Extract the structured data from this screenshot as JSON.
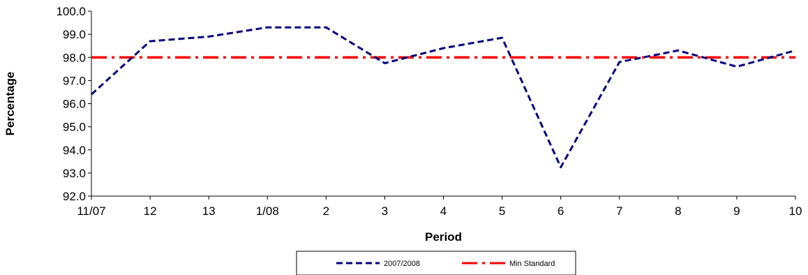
{
  "chart_data": {
    "type": "line",
    "title": "",
    "xlabel": "Period",
    "ylabel": "Percentage",
    "categories": [
      "11/07",
      "12",
      "13",
      "1/08",
      "2",
      "3",
      "4",
      "5",
      "6",
      "7",
      "8",
      "9",
      "10"
    ],
    "ylim": [
      92.0,
      100.0
    ],
    "yticks": [
      "92.0",
      "93.0",
      "94.0",
      "95.0",
      "96.0",
      "97.0",
      "98.0",
      "99.0",
      "100.0"
    ],
    "grid": false,
    "legend_position": "bottom",
    "series": [
      {
        "name": "2007/2008",
        "values": [
          96.4,
          98.7,
          98.9,
          99.3,
          99.3,
          97.75,
          98.4,
          98.85,
          93.25,
          97.8,
          98.3,
          97.6,
          98.3
        ],
        "color": "#000080",
        "style": "dashed"
      },
      {
        "name": "Min Standard",
        "values": [
          98.0,
          98.0,
          98.0,
          98.0,
          98.0,
          98.0,
          98.0,
          98.0,
          98.0,
          98.0,
          98.0,
          98.0,
          98.0
        ],
        "color": "#ff0000",
        "style": "dash-dot"
      }
    ]
  }
}
